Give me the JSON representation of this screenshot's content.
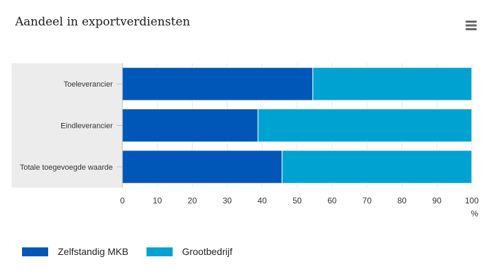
{
  "title": "Aandeel in exportverdiensten",
  "menu_icon": "hamburger-menu-icon",
  "chart_data": {
    "type": "bar",
    "orientation": "horizontal",
    "stacked": true,
    "categories": [
      "Toeleverancier",
      "Eindleverancier",
      "Totale toegevoegde waarde"
    ],
    "series": [
      {
        "name": "Zelfstandig MKB",
        "values": [
          54.5,
          38.8,
          45.7
        ],
        "color": "#0057b8"
      },
      {
        "name": "Grootbedrijf",
        "values": [
          45.5,
          61.2,
          54.3
        ],
        "color": "#00a2d1"
      }
    ],
    "xlim": [
      0,
      100
    ],
    "xticks": [
      0,
      10,
      20,
      30,
      40,
      50,
      60,
      70,
      80,
      90,
      100
    ],
    "xlabel": "%",
    "legend_position": "bottom-left"
  }
}
